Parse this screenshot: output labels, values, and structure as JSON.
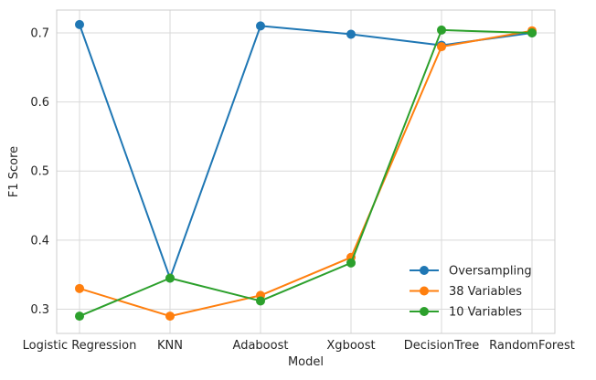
{
  "chart_data": {
    "type": "line",
    "title": "",
    "xlabel": "Model",
    "ylabel": "F1 Score",
    "categories": [
      "Logistic Regression",
      "KNN",
      "Adaboost",
      "Xgboost",
      "DecisionTree",
      "RandomForest"
    ],
    "ylim": [
      0.265,
      0.733
    ],
    "yticks": [
      0.3,
      0.4,
      0.5,
      0.6,
      0.7
    ],
    "ytick_labels": [
      "0.3",
      "0.4",
      "0.5",
      "0.6",
      "0.7"
    ],
    "grid": true,
    "legend_position": "lower-right",
    "series": [
      {
        "name": "Oversampling",
        "color": "#1f77b4",
        "values": [
          0.712,
          0.345,
          0.71,
          0.698,
          0.682,
          0.7
        ]
      },
      {
        "name": "38 Variables",
        "color": "#ff7f0e",
        "values": [
          0.33,
          0.29,
          0.32,
          0.375,
          0.68,
          0.703
        ]
      },
      {
        "name": "10 Variables",
        "color": "#2ca02c",
        "values": [
          0.29,
          0.345,
          0.312,
          0.367,
          0.704,
          0.7
        ]
      }
    ]
  }
}
